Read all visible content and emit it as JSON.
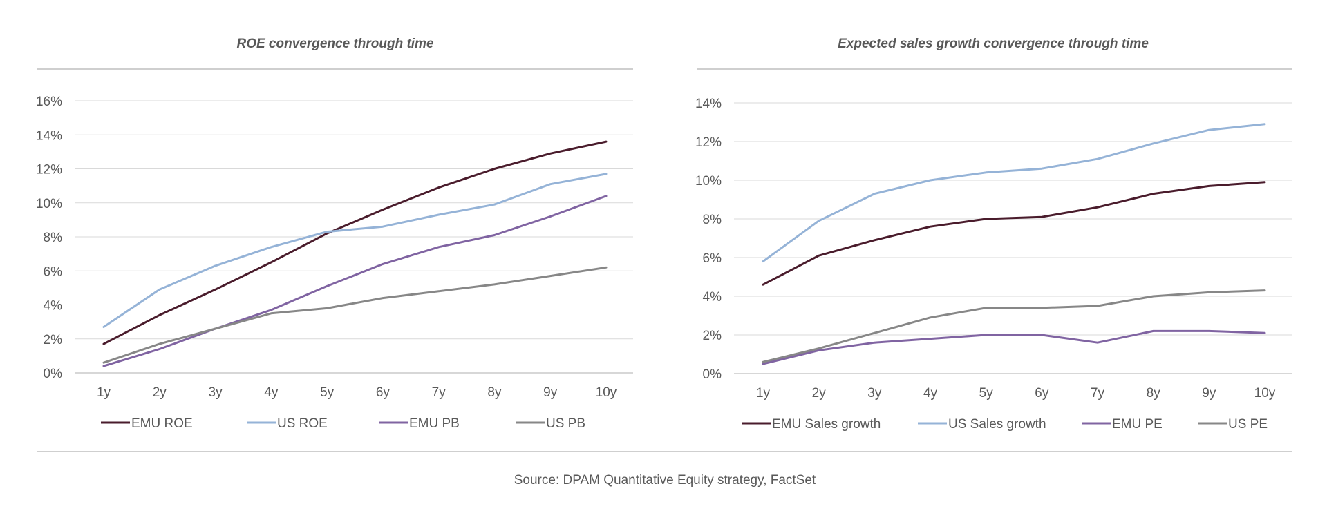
{
  "chart_data": [
    {
      "type": "line",
      "title": "ROE convergence through time",
      "xlabel": "",
      "ylabel": "",
      "ylim": [
        0,
        16
      ],
      "yticks": [
        0,
        2,
        4,
        6,
        8,
        10,
        12,
        14,
        16
      ],
      "ytick_suffix": "%",
      "categories": [
        "1y",
        "2y",
        "3y",
        "4y",
        "5y",
        "6y",
        "7y",
        "8y",
        "9y",
        "10y"
      ],
      "legend_position": "bottom",
      "series": [
        {
          "name": "EMU ROE",
          "color": "#4a1c2c",
          "values": [
            1.7,
            3.4,
            4.9,
            6.5,
            8.2,
            9.6,
            10.9,
            12.0,
            12.9,
            13.6
          ]
        },
        {
          "name": "US ROE",
          "color": "#95b3d7",
          "values": [
            2.7,
            4.9,
            6.3,
            7.4,
            8.3,
            8.6,
            9.3,
            9.9,
            11.1,
            11.7
          ]
        },
        {
          "name": "EMU PB",
          "color": "#8064a2",
          "values": [
            0.4,
            1.4,
            2.6,
            3.7,
            5.1,
            6.4,
            7.4,
            8.1,
            9.2,
            10.4
          ]
        },
        {
          "name": "US PB",
          "color": "#878787",
          "values": [
            0.6,
            1.7,
            2.6,
            3.5,
            3.8,
            4.4,
            4.8,
            5.2,
            5.7,
            6.2
          ]
        }
      ]
    },
    {
      "type": "line",
      "title": "Expected sales growth convergence through time",
      "xlabel": "",
      "ylabel": "",
      "ylim": [
        0,
        14
      ],
      "yticks": [
        0,
        2,
        4,
        6,
        8,
        10,
        12,
        14
      ],
      "ytick_suffix": "%",
      "categories": [
        "1y",
        "2y",
        "3y",
        "4y",
        "5y",
        "6y",
        "7y",
        "8y",
        "9y",
        "10y"
      ],
      "legend_position": "bottom",
      "series": [
        {
          "name": "EMU Sales growth",
          "color": "#4a1c2c",
          "values": [
            4.6,
            6.1,
            6.9,
            7.6,
            8.0,
            8.1,
            8.6,
            9.3,
            9.7,
            9.9
          ]
        },
        {
          "name": "US Sales growth",
          "color": "#95b3d7",
          "values": [
            5.8,
            7.9,
            9.3,
            10.0,
            10.4,
            10.6,
            11.1,
            11.9,
            12.6,
            12.9
          ]
        },
        {
          "name": "EMU PE",
          "color": "#8064a2",
          "values": [
            0.5,
            1.2,
            1.6,
            1.8,
            2.0,
            2.0,
            1.6,
            2.2,
            2.2,
            2.1
          ]
        },
        {
          "name": "US PE",
          "color": "#878787",
          "values": [
            0.6,
            1.3,
            2.1,
            2.9,
            3.4,
            3.4,
            3.5,
            4.0,
            4.2,
            4.3
          ]
        }
      ]
    }
  ],
  "source": "Source: DPAM Quantitative Equity strategy, FactSet"
}
